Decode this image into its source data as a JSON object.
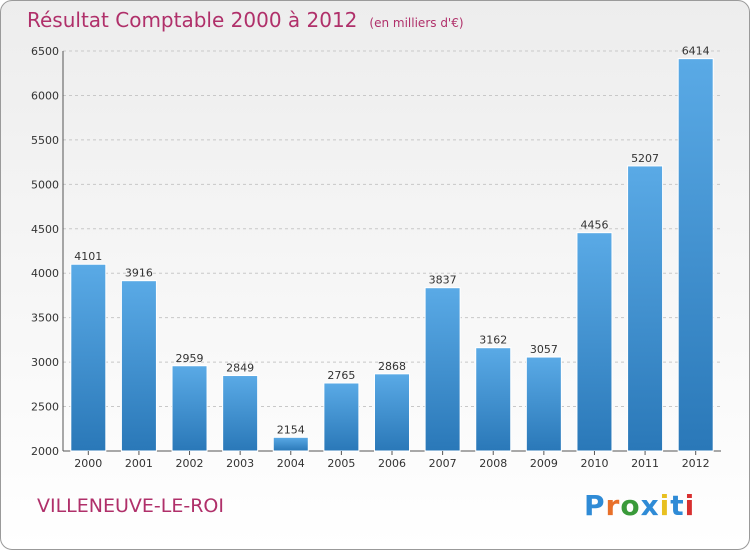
{
  "header": {
    "title": "Résultat Comptable 2000 à 2012",
    "subtitle": "(en milliers d'€)"
  },
  "footer": {
    "place": "VILLENEUVE-LE-ROI",
    "logo": "Proxiti"
  },
  "colors": {
    "bar_top": "#5aaae6",
    "bar_bottom": "#2a78b8",
    "title": "#b0306a",
    "logo": [
      "#2f8bd6",
      "#e8702a",
      "#3a9a3a",
      "#2f8bd6",
      "#e8c020",
      "#2f8bd6",
      "#d83030"
    ]
  },
  "chart_data": {
    "type": "bar",
    "title": "Résultat Comptable 2000 à 2012",
    "categories": [
      "2000",
      "2001",
      "2002",
      "2003",
      "2004",
      "2005",
      "2006",
      "2007",
      "2008",
      "2009",
      "2010",
      "2011",
      "2012"
    ],
    "values": [
      4101,
      3916,
      2959,
      2849,
      2154,
      2765,
      2868,
      3837,
      3162,
      3057,
      4456,
      5207,
      6414
    ],
    "ylim": [
      2000,
      6500
    ],
    "yticks": [
      2000,
      2500,
      3000,
      3500,
      4000,
      4500,
      5000,
      5500,
      6000,
      6500
    ],
    "grid": true,
    "legend": "none"
  }
}
